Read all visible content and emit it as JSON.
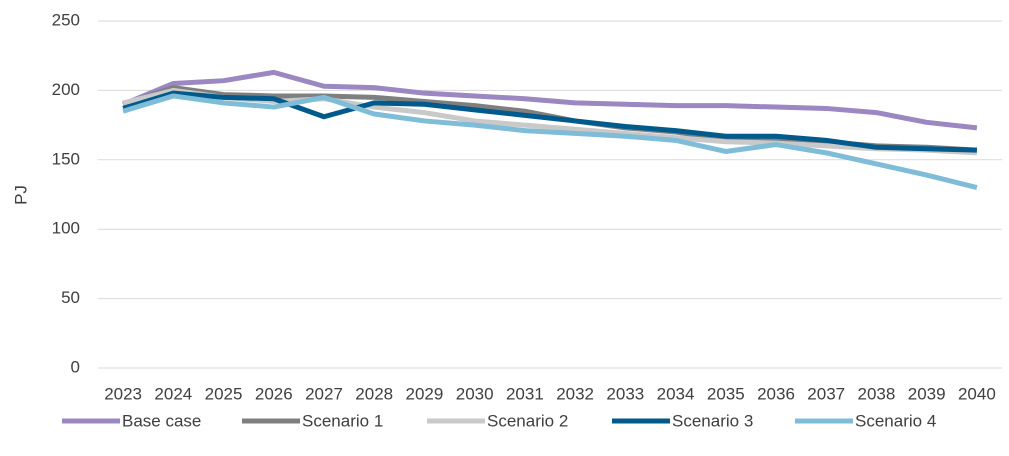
{
  "chart_data": {
    "type": "line",
    "y_label": "PJ",
    "categories": [
      "2023",
      "2024",
      "2025",
      "2026",
      "2027",
      "2028",
      "2029",
      "2030",
      "2031",
      "2032",
      "2033",
      "2034",
      "2035",
      "2036",
      "2037",
      "2038",
      "2039",
      "2040"
    ],
    "series": [
      {
        "name": "Base case",
        "color": "#9b87c1",
        "values": [
          190,
          205,
          207,
          213,
          203,
          202,
          198,
          196,
          194,
          191,
          190,
          189,
          189,
          188,
          187,
          184,
          177,
          173
        ]
      },
      {
        "name": "Scenario 1",
        "color": "#7f7f7f",
        "values": [
          190,
          202,
          197,
          196,
          196,
          195,
          192,
          189,
          185,
          178,
          173,
          170,
          165,
          165,
          163,
          160,
          159,
          157
        ]
      },
      {
        "name": "Scenario 2",
        "color": "#c9c9c9",
        "values": [
          191,
          200,
          195,
          192,
          194,
          188,
          184,
          178,
          175,
          172,
          169,
          166,
          163,
          162,
          160,
          158,
          157,
          155
        ]
      },
      {
        "name": "Scenario 3",
        "color": "#005a8c",
        "values": [
          187,
          198,
          195,
          194,
          181,
          191,
          190,
          186,
          182,
          178,
          174,
          171,
          167,
          167,
          164,
          159,
          158,
          157
        ]
      },
      {
        "name": "Scenario 4",
        "color": "#7fbcd8",
        "values": [
          185,
          196,
          191,
          188,
          195,
          183,
          178,
          175,
          171,
          169,
          167,
          164,
          156,
          161,
          155,
          147,
          139,
          130
        ]
      }
    ],
    "ylim": [
      0,
      250
    ],
    "yticks": [
      0,
      50,
      100,
      150,
      200,
      250
    ],
    "grid": true,
    "legend": "bottom"
  }
}
